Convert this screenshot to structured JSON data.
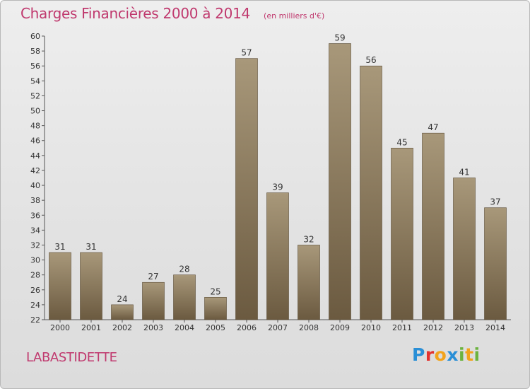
{
  "header": {
    "title": "Charges Financières 2000 à 2014",
    "unit_note": "(en milliers d'€)"
  },
  "footer": {
    "place_name": "LABASTIDETTE",
    "logo_letters": [
      {
        "char": "P",
        "color": "#2a8fd6"
      },
      {
        "char": "r",
        "color": "#e2322e"
      },
      {
        "char": "o",
        "color": "#f2a31b"
      },
      {
        "char": "x",
        "color": "#2a8fd6"
      },
      {
        "char": "i",
        "color": "#6cb33f"
      },
      {
        "char": "t",
        "color": "#f2a31b"
      },
      {
        "char": "i",
        "color": "#6cb33f"
      }
    ]
  },
  "chart_data": {
    "type": "bar",
    "categories": [
      "2000",
      "2001",
      "2002",
      "2003",
      "2004",
      "2005",
      "2006",
      "2007",
      "2008",
      "2009",
      "2010",
      "2011",
      "2012",
      "2013",
      "2014"
    ],
    "values": [
      31,
      31,
      24,
      27,
      28,
      25,
      57,
      39,
      32,
      59,
      56,
      45,
      47,
      41,
      37
    ],
    "title": "Charges Financières 2000 à 2014",
    "ylim": [
      22,
      60
    ],
    "yticks": [
      22,
      24,
      26,
      28,
      30,
      32,
      34,
      36,
      38,
      40,
      42,
      44,
      46,
      48,
      50,
      52,
      54,
      56,
      58,
      60
    ],
    "grid": false,
    "bar_color_top": "#a8987a",
    "bar_color_bottom": "#6b5a40",
    "title_color": "#c0396e"
  }
}
